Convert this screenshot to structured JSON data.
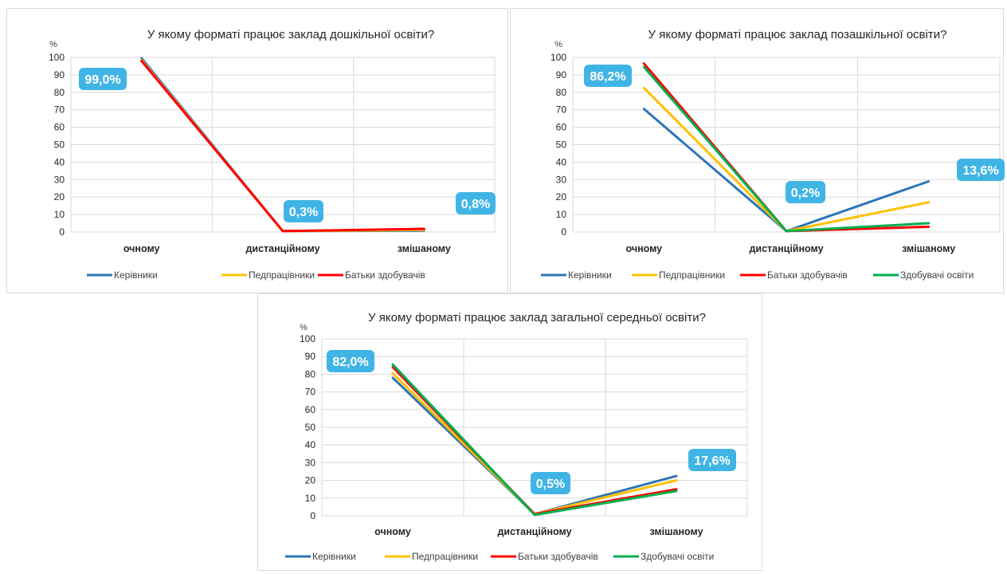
{
  "chart_data": [
    {
      "type": "line",
      "title": "У якому форматі працює заклад дошкільної освіти?",
      "ylabel": "%",
      "ylim": [
        0,
        100
      ],
      "yticks": [
        0,
        10,
        20,
        30,
        40,
        50,
        60,
        70,
        80,
        90,
        100
      ],
      "categories": [
        "очному",
        "дистанційному",
        "змішаному"
      ],
      "series": [
        {
          "name": "Керівники",
          "color": "#2e75b6",
          "values": [
            99.5,
            0.5,
            0.8
          ]
        },
        {
          "name": "Педпрацівники",
          "color": "#ffc000",
          "values": [
            98.5,
            0.5,
            1.2
          ]
        },
        {
          "name": "Батьки здобувачів",
          "color": "#ff0000",
          "values": [
            98.0,
            0.5,
            1.8
          ]
        }
      ],
      "callouts": [
        "99,0%",
        "0,3%",
        "0,8%"
      ]
    },
    {
      "type": "line",
      "title": "У якому форматі працює заклад позашкільної освіти?",
      "ylabel": "%",
      "ylim": [
        0,
        100
      ],
      "yticks": [
        0,
        10,
        20,
        30,
        40,
        50,
        60,
        70,
        80,
        90,
        100
      ],
      "categories": [
        "очному",
        "дистанційному",
        "змішаному"
      ],
      "series": [
        {
          "name": "Керівники",
          "color": "#2e75b6",
          "values": [
            70.5,
            0.5,
            29.0
          ]
        },
        {
          "name": "Педпрацівники",
          "color": "#ffc000",
          "values": [
            82.5,
            0.5,
            17.0
          ]
        },
        {
          "name": "Батьки здобувачів",
          "color": "#ff0000",
          "values": [
            96.5,
            0.5,
            3.0
          ]
        },
        {
          "name": "Здобувачі освіти",
          "color": "#00b050",
          "values": [
            94.5,
            0.5,
            5.0
          ]
        }
      ],
      "callouts": [
        "86,2%",
        "0,2%",
        "13,6%"
      ]
    },
    {
      "type": "line",
      "title": "У якому форматі працює заклад загальної середньої освіти?",
      "ylabel": "%",
      "ylim": [
        0,
        100
      ],
      "yticks": [
        0,
        10,
        20,
        30,
        40,
        50,
        60,
        70,
        80,
        90,
        100
      ],
      "categories": [
        "очному",
        "дистанційному",
        "змішаному"
      ],
      "series": [
        {
          "name": "Керівники",
          "color": "#2e75b6",
          "values": [
            78.0,
            1.0,
            22.5
          ]
        },
        {
          "name": "Педпрацівники",
          "color": "#ffc000",
          "values": [
            80.5,
            1.0,
            20.0
          ]
        },
        {
          "name": "Батьки здобувачів",
          "color": "#ff0000",
          "values": [
            84.0,
            1.0,
            15.0
          ]
        },
        {
          "name": "Здобувачі освіти",
          "color": "#00b050",
          "values": [
            85.5,
            0.5,
            14.0
          ]
        }
      ],
      "callouts": [
        "82,0%",
        "0,5%",
        "17,6%"
      ]
    }
  ],
  "colors": {
    "callout_bg": "#41b4e6",
    "grid": "#d9d9d9"
  }
}
